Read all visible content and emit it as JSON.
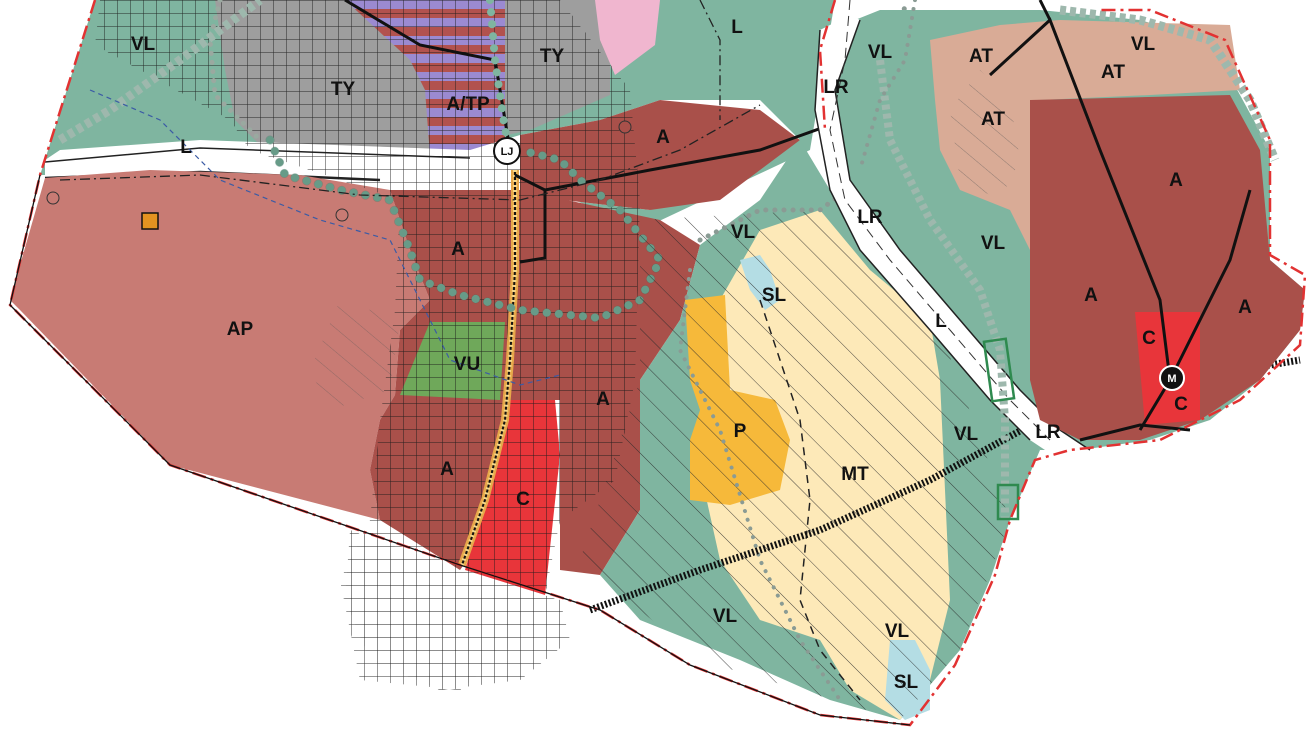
{
  "map": {
    "zones": {
      "vl_nw": "VL",
      "ty_left": "TY",
      "ty_right": "TY",
      "atp": "A/TP",
      "l_top": "L",
      "l_road_left": "L",
      "l_road_right": "L",
      "a_upper": "A",
      "a_mid": "A",
      "a_center": "A",
      "a_lower": "A",
      "ap": "AP",
      "vu": "VU",
      "c_center": "C",
      "vl_mid": "VL",
      "sl_mid": "SL",
      "p": "P",
      "mt": "MT",
      "vl_south": "VL",
      "vl_se": "VL",
      "sl_se": "SL",
      "vl_east": "VL",
      "vl_ne_top": "VL",
      "vl_ne_right": "VL",
      "vl_road": "VL",
      "lr_1": "LR",
      "lr_2": "LR",
      "lr_3": "LR",
      "at_1": "AT",
      "at_2": "AT",
      "at_3": "AT",
      "a_east_1": "A",
      "a_east_2": "A",
      "a_east_3": "A",
      "c_east_1": "C",
      "c_east_2": "C"
    },
    "symbols": {
      "lj": "LJ",
      "metro": "M"
    },
    "colors": {
      "green_zone": "#7fb5a0",
      "residential_a": "#a9504a",
      "residential_ap": "#c87b74",
      "commercial_c": "#e8353a",
      "recreation_vu": "#6fa85a",
      "industrial_ty": "#9e9e9e",
      "atp_purple": "#9b8ad1",
      "mt_yellow": "#fde9b8",
      "p_orange": "#f6b93a",
      "at_tan": "#d9ab96",
      "sl_blue": "#b4dde4",
      "boundary_red": "#e23232"
    }
  }
}
